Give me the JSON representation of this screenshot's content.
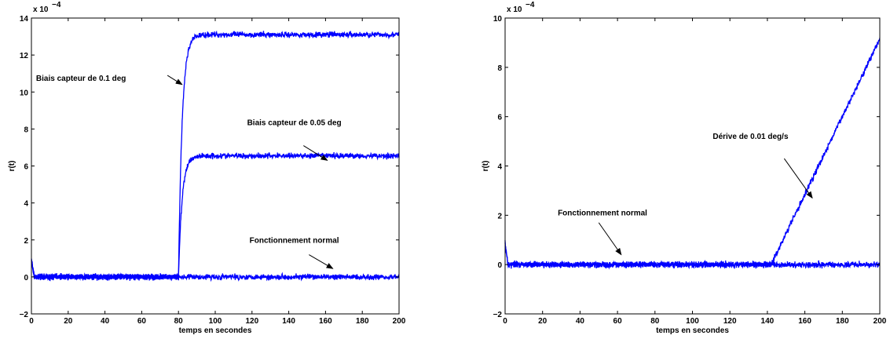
{
  "chart_data": [
    {
      "type": "line",
      "xlabel": "temps en secondes",
      "ylabel": "r(t)",
      "y_exponent_label": "x 10",
      "y_exponent_power": "−4",
      "xlim": [
        0,
        200
      ],
      "ylim": [
        -2,
        14
      ],
      "xticks": [
        0,
        20,
        40,
        60,
        80,
        100,
        120,
        140,
        160,
        180,
        200
      ],
      "yticks": [
        -2,
        0,
        2,
        4,
        6,
        8,
        10,
        12,
        14
      ],
      "grid": false,
      "series": [
        {
          "fault_start": 80,
          "plateau": 13.1,
          "tau": 2.0,
          "noise": 0.15,
          "color": "#0000ff"
        },
        {
          "fault_start": 80,
          "plateau": 6.55,
          "tau": 2.0,
          "noise": 0.15,
          "color": "#0000ff"
        },
        {
          "fault_start": null,
          "plateau": 0.0,
          "tau": 0,
          "noise": 0.15,
          "color": "#0000ff"
        }
      ],
      "annotations": [
        {
          "text": "Biais capteur de 0.1 deg",
          "label_xy": [
            27,
            10.6
          ],
          "arrow_from": [
            74,
            10.9
          ],
          "arrow_to": [
            82,
            10.4
          ]
        },
        {
          "text": "Biais capteur de 0.05 deg",
          "label_xy": [
            143,
            8.2
          ],
          "arrow_from": [
            148,
            7.1
          ],
          "arrow_to": [
            161,
            6.3
          ]
        },
        {
          "text": "Fonctionnement normal",
          "label_xy": [
            143,
            1.85
          ],
          "arrow_from": [
            151,
            1.2
          ],
          "arrow_to": [
            164,
            0.45
          ]
        }
      ]
    },
    {
      "type": "line",
      "xlabel": "temps en secondes",
      "ylabel": "r(t)",
      "y_exponent_label": "x 10",
      "y_exponent_power": "−4",
      "xlim": [
        0,
        200
      ],
      "ylim": [
        -2,
        10
      ],
      "xticks": [
        0,
        20,
        40,
        60,
        80,
        100,
        120,
        140,
        160,
        180,
        200
      ],
      "yticks": [
        -2,
        0,
        2,
        4,
        6,
        8,
        10
      ],
      "grid": false,
      "series": [
        {
          "fault_start": 142,
          "slope": 0.158,
          "noise": 0.12,
          "color": "#0000ff"
        },
        {
          "fault_start": null,
          "slope": 0,
          "noise": 0.12,
          "color": "#0000ff"
        }
      ],
      "annotations": [
        {
          "text": "Dérive de 0.01 deg/s",
          "label_xy": [
            131,
            5.1
          ],
          "arrow_from": [
            149,
            4.3
          ],
          "arrow_to": [
            164,
            2.7
          ]
        },
        {
          "text": "Fonctionnement normal",
          "label_xy": [
            52,
            2.0
          ],
          "arrow_from": [
            50,
            1.7
          ],
          "arrow_to": [
            62,
            0.4
          ]
        }
      ]
    }
  ]
}
